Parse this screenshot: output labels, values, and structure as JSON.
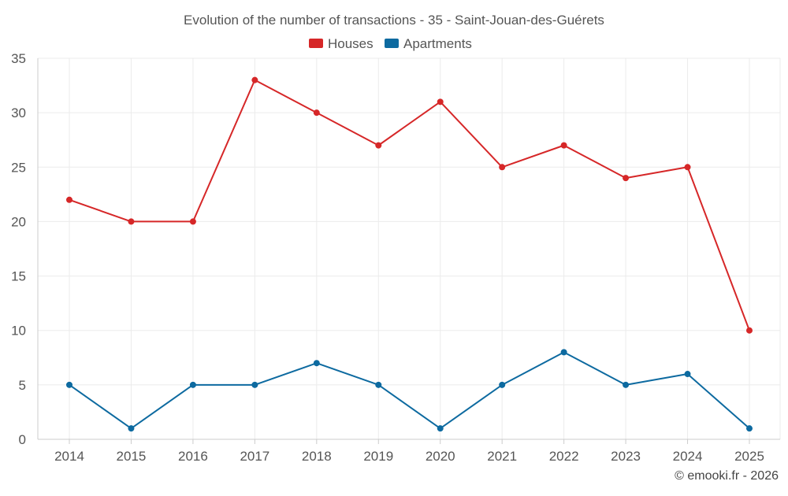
{
  "chart_data": {
    "type": "line",
    "title": "Evolution of the number of transactions - 35 - Saint-Jouan-des-Guérets",
    "xlabel": "",
    "ylabel": "",
    "categories": [
      "2014",
      "2015",
      "2016",
      "2017",
      "2018",
      "2019",
      "2020",
      "2021",
      "2022",
      "2023",
      "2024",
      "2025"
    ],
    "ylim": [
      0,
      35
    ],
    "yticks": [
      "0",
      "5",
      "10",
      "15",
      "20",
      "25",
      "30",
      "35"
    ],
    "grid": true,
    "legend_position": "top-center",
    "series": [
      {
        "name": "Houses",
        "color": "#d62728",
        "values": [
          22,
          20,
          20,
          33,
          30,
          27,
          31,
          25,
          27,
          24,
          25,
          10
        ]
      },
      {
        "name": "Apartments",
        "color": "#0d6aa0",
        "values": [
          5,
          1,
          5,
          5,
          7,
          5,
          1,
          5,
          8,
          5,
          6,
          1
        ]
      }
    ]
  },
  "footer": {
    "credit": "© emooki.fr - 2026"
  },
  "colors": {
    "grid": "#ebebeb",
    "axis": "#cccccc",
    "text": "#555555"
  }
}
